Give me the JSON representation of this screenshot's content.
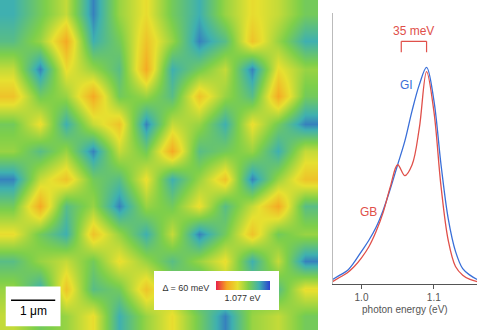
{
  "chart_data": [
    {
      "type": "heatmap",
      "x": [
        0.3,
        0.9,
        1.5,
        2.1,
        2.7,
        3.3,
        3.9,
        4.5,
        5.1,
        5.7,
        6.3,
        6.9
      ],
      "y": [
        6.9,
        6.3,
        5.7,
        5.1,
        4.5,
        3.9,
        3.3,
        2.7,
        2.1,
        1.5,
        0.9,
        0.3
      ],
      "z": [
        [
          1.095,
          1.085,
          1.075,
          1.1,
          1.08,
          1.07,
          1.085,
          1.095,
          1.08,
          1.07,
          1.075,
          1.085
        ],
        [
          1.09,
          1.08,
          1.06,
          1.095,
          1.085,
          1.065,
          1.08,
          1.1,
          1.09,
          1.065,
          1.08,
          1.095
        ],
        [
          1.075,
          1.1,
          1.07,
          1.08,
          1.09,
          1.06,
          1.095,
          1.085,
          1.075,
          1.1,
          1.07,
          1.08
        ],
        [
          1.065,
          1.085,
          1.08,
          1.06,
          1.085,
          1.08,
          1.09,
          1.065,
          1.08,
          1.09,
          1.06,
          1.085
        ],
        [
          1.085,
          1.07,
          1.095,
          1.075,
          1.065,
          1.1,
          1.075,
          1.08,
          1.095,
          1.07,
          1.085,
          1.1
        ],
        [
          1.08,
          1.09,
          1.08,
          1.1,
          1.075,
          1.085,
          1.06,
          1.09,
          1.085,
          1.08,
          1.095,
          1.075
        ],
        [
          1.1,
          1.075,
          1.065,
          1.085,
          1.09,
          1.07,
          1.095,
          1.08,
          1.065,
          1.1,
          1.08,
          1.065
        ],
        [
          1.085,
          1.06,
          1.09,
          1.08,
          1.1,
          1.08,
          1.085,
          1.07,
          1.09,
          1.075,
          1.06,
          1.09
        ],
        [
          1.07,
          1.085,
          1.095,
          1.065,
          1.08,
          1.095,
          1.075,
          1.1,
          1.085,
          1.065,
          1.085,
          1.08
        ],
        [
          1.09,
          1.08,
          1.075,
          1.085,
          1.07,
          1.08,
          1.09,
          1.08,
          1.07,
          1.095,
          1.075,
          1.1
        ],
        [
          1.08,
          1.095,
          1.065,
          1.09,
          1.085,
          1.065,
          1.08,
          1.095,
          1.08,
          1.085,
          1.09,
          1.07
        ],
        [
          1.075,
          1.085,
          1.08,
          1.07,
          1.095,
          1.08,
          1.07,
          1.085,
          1.1,
          1.08,
          1.075,
          1.085
        ]
      ],
      "xlim": [
        0,
        7.2
      ],
      "ylim": [
        0,
        7.2
      ],
      "tick_labels": false,
      "colors": [
        "#e8204a",
        "#f5a623",
        "#e6e030",
        "#7ecf4a",
        "#3fb0b0",
        "#2a40d0"
      ],
      "zlim": [
        1.047,
        1.107
      ],
      "colorbar_ticks": [
        {
          "value": 1.077,
          "label": "1.077 eV"
        }
      ],
      "colorbar_title": "Δ = 60 meV",
      "scale_bar": {
        "label": "1 μm",
        "length": 1
      }
    },
    {
      "type": "line",
      "x": [
        0.96,
        0.97,
        0.98,
        0.99,
        1.0,
        1.01,
        1.02,
        1.03,
        1.04,
        1.05,
        1.06,
        1.07,
        1.08,
        1.09,
        1.1,
        1.11,
        1.12,
        1.13,
        1.14,
        1.15,
        1.16
      ],
      "series": [
        {
          "name": "GI",
          "color": "#3a6fd8",
          "values": [
            0.02,
            0.04,
            0.06,
            0.1,
            0.15,
            0.2,
            0.26,
            0.34,
            0.44,
            0.55,
            0.66,
            0.8,
            0.92,
            1.0,
            0.85,
            0.55,
            0.3,
            0.15,
            0.07,
            0.04,
            0.02
          ]
        },
        {
          "name": "GB",
          "color": "#e0504a",
          "values": [
            0.01,
            0.03,
            0.05,
            0.08,
            0.12,
            0.17,
            0.24,
            0.33,
            0.45,
            0.55,
            0.5,
            0.55,
            0.72,
            0.98,
            0.8,
            0.45,
            0.2,
            0.08,
            0.04,
            0.02,
            0.01
          ]
        }
      ],
      "x_label": "photon energy (eV)",
      "xlim": [
        0.96,
        1.16
      ],
      "xticks": [
        1.0,
        1.1
      ],
      "ylim": [
        0,
        1.25
      ],
      "tick_labels": "x",
      "bracket": {
        "label": "35 meV",
        "x0": 1.055,
        "x1": 1.09,
        "y": 1.12,
        "color": "#e0504a"
      }
    }
  ]
}
